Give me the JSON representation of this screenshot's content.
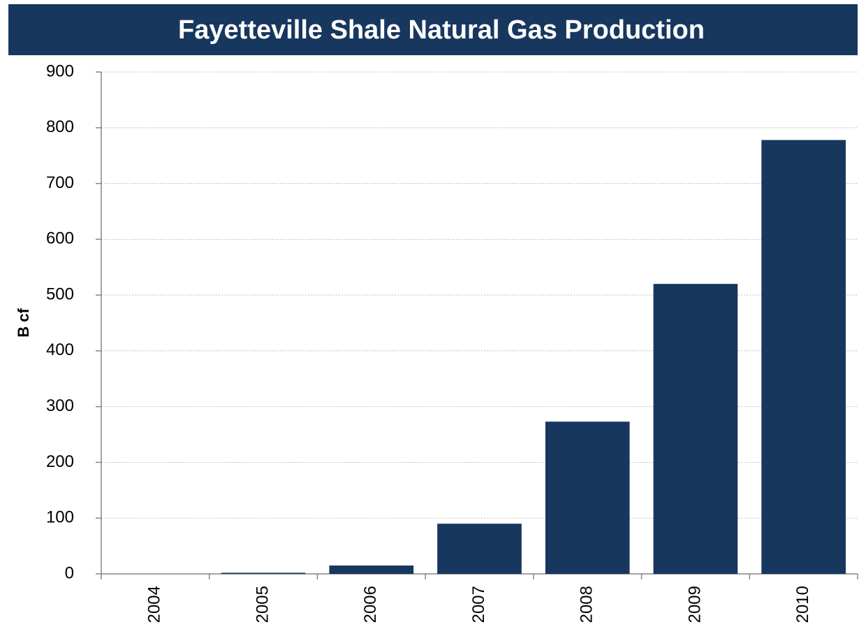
{
  "chart_data": {
    "type": "bar",
    "title": "Fayetteville Shale Natural Gas Production",
    "y_label": "B cf",
    "categories": [
      "2004",
      "2005",
      "2006",
      "2007",
      "2008",
      "2009",
      "2010"
    ],
    "values": [
      0,
      2,
      15,
      90,
      273,
      520,
      778
    ],
    "color": "#17375e",
    "ylim": [
      0,
      900
    ],
    "yticks": [
      0,
      100,
      200,
      300,
      400,
      500,
      600,
      700,
      800,
      900
    ],
    "grid": true
  }
}
